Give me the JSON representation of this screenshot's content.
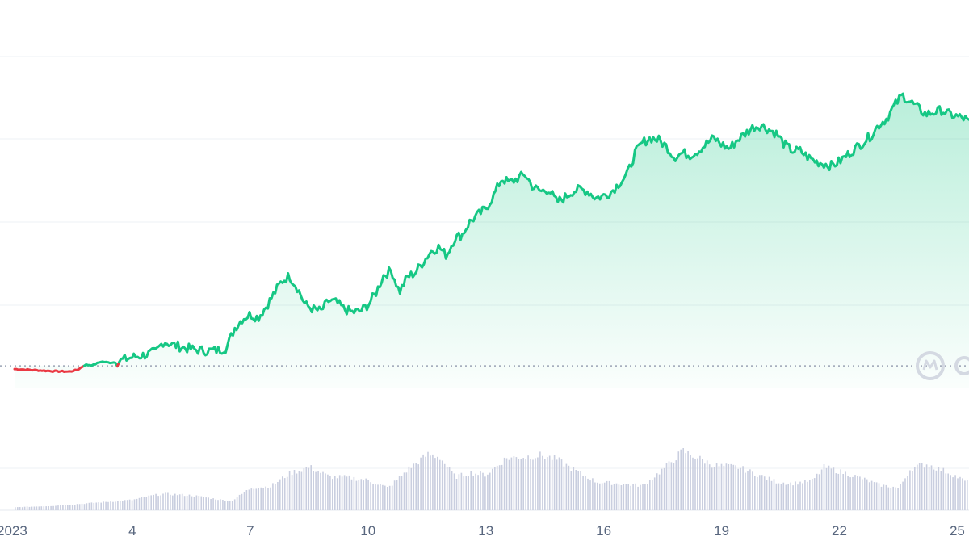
{
  "chart_data": {
    "type": "area",
    "title": "",
    "xlabel": "",
    "ylabel": "",
    "x_tick_labels": [
      "2023",
      "4",
      "7",
      "10",
      "13",
      "16",
      "19",
      "22",
      "25"
    ],
    "x_tick_days": [
      1,
      4,
      7,
      10,
      13,
      16,
      19,
      22,
      25
    ],
    "x_range_days": [
      1,
      25.3
    ],
    "y_range_relative": [
      0,
      1
    ],
    "grid": true,
    "baseline_open_relative": 0.045,
    "colors": {
      "up_line": "#16c784",
      "down_line": "#ea3943",
      "fill_top": "#16c784",
      "volume_bar": "#c9cedf",
      "grid": "#eef0f4",
      "baseline": "#9aa3b5",
      "tick_text": "#58667e",
      "watermark": "#d4d9e2"
    },
    "series": [
      {
        "x": [
          1.0,
          1.5,
          2.0,
          2.4,
          2.6,
          2.8,
          3.0,
          3.2,
          3.4,
          3.6,
          3.8,
          4.0,
          4.3,
          4.6,
          4.8,
          5.0,
          5.3,
          5.6,
          5.9,
          6.2,
          6.4,
          6.6,
          6.8,
          7.0,
          7.2,
          7.4,
          7.6,
          7.8,
          8.0,
          8.2,
          8.4,
          8.6,
          8.8,
          9.0,
          9.2,
          9.4,
          9.6,
          9.8,
          10.0,
          10.2,
          10.4,
          10.6,
          10.8,
          11.0,
          11.2,
          11.4,
          11.6,
          11.8,
          12.0,
          12.2,
          12.4,
          12.6,
          12.8,
          13.0,
          13.2,
          13.4,
          13.6,
          13.8,
          14.0,
          14.2,
          14.4,
          14.6,
          14.8,
          15.0,
          15.2,
          15.4,
          15.6,
          15.8,
          16.0,
          16.2,
          16.4,
          16.6,
          16.8,
          17.0,
          17.2,
          17.4,
          17.6,
          17.8,
          18.0,
          18.2,
          18.4,
          18.6,
          18.8,
          19.0,
          19.2,
          19.4,
          19.6,
          19.8,
          20.0,
          20.2,
          20.4,
          20.6,
          20.8,
          21.0,
          21.2,
          21.4,
          21.6,
          21.8,
          22.0,
          22.2,
          22.4,
          22.6,
          22.8,
          23.0,
          23.2,
          23.4,
          23.6,
          23.8,
          24.0,
          24.2,
          24.4,
          24.6,
          24.8,
          25.0,
          25.2,
          25.3
        ],
        "y": [
          0.03,
          0.025,
          0.02,
          0.018,
          0.026,
          0.05,
          0.048,
          0.065,
          0.06,
          0.062,
          0.075,
          0.085,
          0.095,
          0.11,
          0.16,
          0.145,
          0.13,
          0.12,
          0.115,
          0.118,
          0.13,
          0.22,
          0.265,
          0.285,
          0.27,
          0.32,
          0.38,
          0.44,
          0.465,
          0.41,
          0.33,
          0.31,
          0.3,
          0.35,
          0.34,
          0.31,
          0.295,
          0.3,
          0.33,
          0.385,
          0.47,
          0.49,
          0.39,
          0.46,
          0.48,
          0.53,
          0.58,
          0.6,
          0.56,
          0.64,
          0.66,
          0.72,
          0.75,
          0.78,
          0.84,
          0.92,
          0.9,
          0.92,
          0.94,
          0.88,
          0.86,
          0.87,
          0.81,
          0.83,
          0.86,
          0.87,
          0.86,
          0.83,
          0.84,
          0.86,
          0.9,
          0.94,
          1.04,
          1.09,
          1.11,
          1.1,
          1.07,
          1.02,
          1.04,
          1.03,
          1.05,
          1.08,
          1.11,
          1.08,
          1.06,
          1.1,
          1.13,
          1.16,
          1.17,
          1.15,
          1.13,
          1.08,
          1.05,
          1.05,
          1.02,
          1.0,
          0.99,
          0.98,
          1.0,
          1.03,
          1.06,
          1.09,
          1.12,
          1.17,
          1.2,
          1.26,
          1.31,
          1.28,
          1.25,
          1.22,
          1.23,
          1.24,
          1.22,
          1.21,
          1.2,
          1.18
        ]
      },
      {
        "name": "volume",
        "x": [
          1.0,
          2.0,
          3.0,
          3.5,
          4.0,
          4.5,
          4.8,
          5.5,
          6.5,
          7.0,
          7.5,
          8.0,
          8.5,
          9.0,
          9.5,
          10.0,
          10.5,
          11.0,
          11.5,
          11.8,
          12.2,
          12.6,
          13.0,
          13.5,
          14.0,
          14.4,
          14.8,
          15.2,
          15.8,
          16.3,
          17.0,
          17.6,
          18.0,
          18.4,
          18.8,
          19.4,
          19.8,
          20.4,
          20.8,
          21.3,
          21.6,
          22.0,
          22.5,
          23.0,
          23.5,
          23.8,
          24.2,
          24.8,
          25.3
        ],
        "y": [
          0.04,
          0.06,
          0.1,
          0.12,
          0.14,
          0.2,
          0.22,
          0.2,
          0.12,
          0.3,
          0.32,
          0.5,
          0.58,
          0.45,
          0.44,
          0.4,
          0.3,
          0.55,
          0.75,
          0.72,
          0.45,
          0.5,
          0.48,
          0.7,
          0.72,
          0.74,
          0.68,
          0.55,
          0.38,
          0.36,
          0.33,
          0.6,
          0.8,
          0.7,
          0.6,
          0.58,
          0.5,
          0.38,
          0.36,
          0.4,
          0.58,
          0.52,
          0.44,
          0.34,
          0.3,
          0.56,
          0.62,
          0.5,
          0.36
        ]
      }
    ]
  }
}
